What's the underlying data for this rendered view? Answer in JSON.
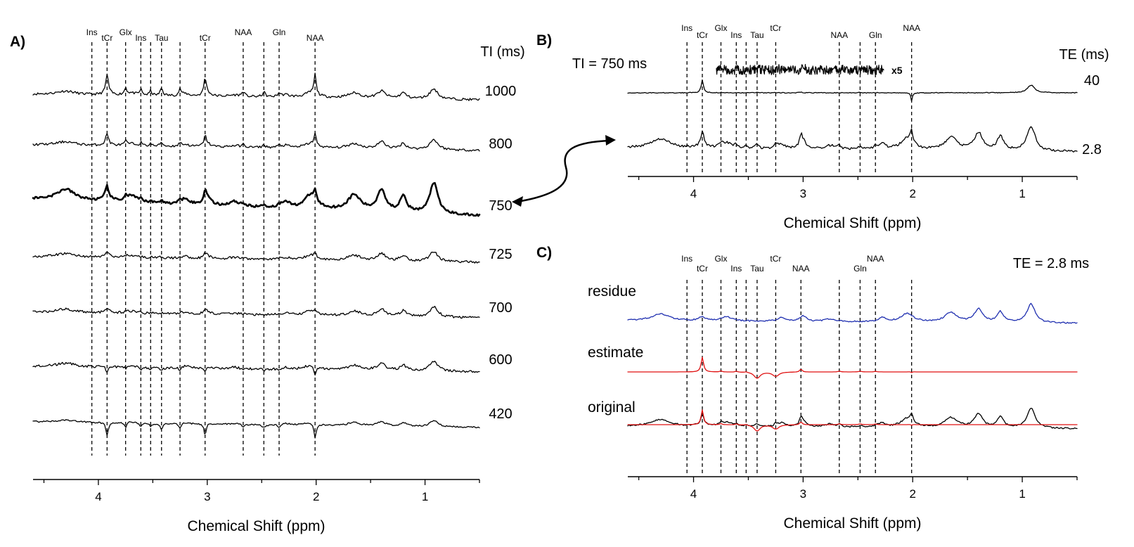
{
  "chart_data": [
    {
      "panel": "A)",
      "type": "line",
      "xlabel": "Chemical Shift (ppm)",
      "xlim": [
        4.6,
        0.5
      ],
      "xticks": [
        4,
        3,
        2,
        1
      ],
      "series_title": "TI (ms)",
      "metabolite_lines": [
        {
          "label": "Ins",
          "ppm": 4.06
        },
        {
          "label": "tCr",
          "ppm": 3.92
        },
        {
          "label": "Glx",
          "ppm": 3.75
        },
        {
          "label": "Ins",
          "ppm": 3.61
        },
        {
          "label": "",
          "ppm": 3.52
        },
        {
          "label": "Tau",
          "ppm": 3.42
        },
        {
          "label": "",
          "ppm": 3.25
        },
        {
          "label": "tCr",
          "ppm": 3.02
        },
        {
          "label": "NAA",
          "ppm": 2.67
        },
        {
          "label": "",
          "ppm": 2.48
        },
        {
          "label": "Gln",
          "ppm": 2.34
        },
        {
          "label": "NAA",
          "ppm": 2.01
        }
      ],
      "series": [
        {
          "name": "1000",
          "color": "#000000"
        },
        {
          "name": "800",
          "color": "#000000"
        },
        {
          "name": "750",
          "color": "#000000"
        },
        {
          "name": "725",
          "color": "#000000"
        },
        {
          "name": "700",
          "color": "#000000"
        },
        {
          "name": "600",
          "color": "#000000"
        },
        {
          "name": "420",
          "color": "#000000"
        }
      ]
    },
    {
      "panel": "B)",
      "type": "line",
      "title": "TI = 750 ms",
      "xlabel": "Chemical Shift (ppm)",
      "xlim": [
        4.6,
        0.5
      ],
      "xticks": [
        4,
        3,
        2,
        1
      ],
      "series_title": "TE (ms)",
      "scale_annotation": "x5",
      "metabolite_lines": [
        {
          "label": "Ins",
          "ppm": 4.06
        },
        {
          "label": "tCr",
          "ppm": 3.92
        },
        {
          "label": "Glx",
          "ppm": 3.75
        },
        {
          "label": "Ins",
          "ppm": 3.61
        },
        {
          "label": "",
          "ppm": 3.52
        },
        {
          "label": "Tau",
          "ppm": 3.42
        },
        {
          "label": "tCr",
          "ppm": 3.25
        },
        {
          "label": "NAA",
          "ppm": 2.67
        },
        {
          "label": "",
          "ppm": 2.48
        },
        {
          "label": "Gln",
          "ppm": 2.34
        },
        {
          "label": "NAA",
          "ppm": 2.01
        }
      ],
      "series": [
        {
          "name": "40",
          "color": "#000000"
        },
        {
          "name": "2.8",
          "color": "#000000"
        }
      ]
    },
    {
      "panel": "C)",
      "type": "line",
      "title": "TE = 2.8 ms",
      "xlabel": "Chemical Shift (ppm)",
      "xlim": [
        4.6,
        0.5
      ],
      "xticks": [
        4,
        3,
        2,
        1
      ],
      "metabolite_lines": [
        {
          "label": "Ins",
          "ppm": 4.06
        },
        {
          "label": "tCr",
          "ppm": 3.92
        },
        {
          "label": "Glx",
          "ppm": 3.75
        },
        {
          "label": "Ins",
          "ppm": 3.61
        },
        {
          "label": "",
          "ppm": 3.52
        },
        {
          "label": "Tau",
          "ppm": 3.42
        },
        {
          "label": "tCr",
          "ppm": 3.25
        },
        {
          "label": "NAA",
          "ppm": 3.02
        },
        {
          "label": "",
          "ppm": 2.67
        },
        {
          "label": "Gln",
          "ppm": 2.48
        },
        {
          "label": "NAA",
          "ppm": 2.34
        },
        {
          "label": "",
          "ppm": 2.01
        }
      ],
      "series": [
        {
          "name": "residue",
          "color": "#1f2fb0"
        },
        {
          "name": "estimate",
          "color": "#e01010"
        },
        {
          "name": "original",
          "color": "#000000"
        }
      ]
    }
  ]
}
